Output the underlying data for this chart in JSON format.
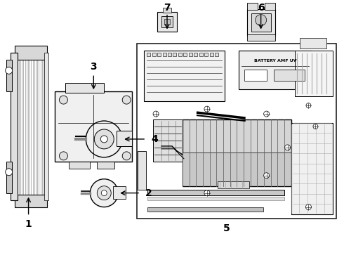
{
  "bg_color": "#ffffff",
  "fig_width": 4.9,
  "fig_height": 3.6,
  "dpi": 100,
  "lc": "#111111",
  "gray": "#888888",
  "lgray": "#cccccc",
  "dgray": "#555555"
}
